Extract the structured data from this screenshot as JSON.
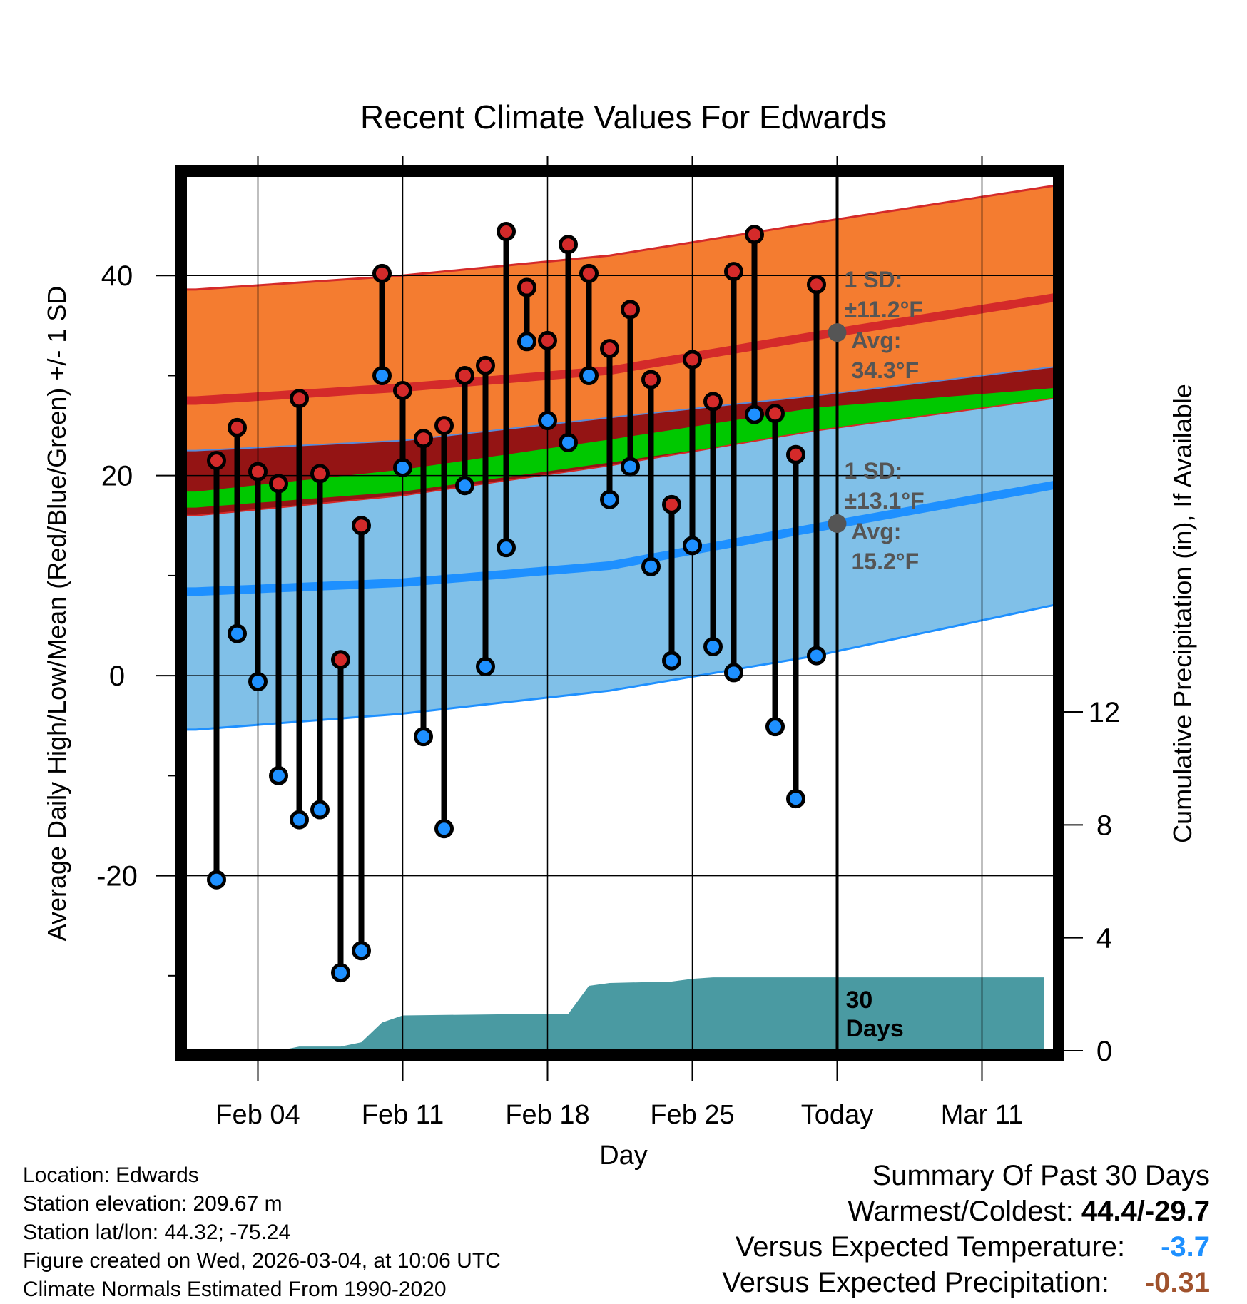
{
  "chart_data": {
    "type": "line",
    "title": "Recent Climate Values For Edwards",
    "xlabel": "Day",
    "ylabel": "Average Daily High/Low/Mean (Red/Blue/Green) +/- 1 SD",
    "y2label": "Cumulative Precipitation (in), If Available",
    "ylim": [
      -37.5,
      50
    ],
    "y2lim": [
      0,
      31
    ],
    "xlim": [
      -0.5,
      41.5
    ],
    "yticks": [
      -20,
      0,
      20,
      40
    ],
    "y2ticks": [
      0,
      4,
      8,
      12
    ],
    "xticks": [
      {
        "day": 3,
        "label": "Feb 04"
      },
      {
        "day": 10,
        "label": "Feb 11"
      },
      {
        "day": 17,
        "label": "Feb 18"
      },
      {
        "day": 24,
        "label": "Feb 25"
      },
      {
        "day": 31,
        "label": "Today"
      },
      {
        "day": 38,
        "label": "Mar 11"
      }
    ],
    "today_day": 31,
    "today_label_line1": "30",
    "today_label_line2": "Days",
    "highs": [
      21.5,
      24.8,
      20.4,
      19.2,
      27.7,
      20.2,
      1.6,
      15.0,
      40.2,
      28.5,
      23.7,
      25.0,
      30.0,
      31.0,
      44.4,
      38.8,
      33.5,
      43.1,
      40.2,
      32.7,
      36.6,
      29.6,
      17.1,
      31.6,
      27.4,
      40.4,
      44.1,
      26.2,
      22.1,
      39.1
    ],
    "lows": [
      -20.4,
      4.2,
      -0.6,
      -10.0,
      -14.4,
      -13.4,
      -29.7,
      -27.5,
      30.0,
      20.8,
      -6.1,
      -15.3,
      19.0,
      0.9,
      12.8,
      33.4,
      25.5,
      23.3,
      30.0,
      17.6,
      20.9,
      10.9,
      1.5,
      13.0,
      2.9,
      0.3,
      26.1,
      -5.1,
      -12.3,
      2.0
    ],
    "normal_days": [
      0,
      10,
      20,
      30,
      40
    ],
    "normal_high_avg": [
      27.5,
      28.8,
      30.5,
      34.0,
      37.3
    ],
    "normal_high_upper": [
      38.6,
      40.0,
      42.0,
      45.3,
      48.5
    ],
    "normal_high_lower": [
      22.5,
      23.5,
      25.8,
      28.0,
      30.5
    ],
    "normal_mean_upper": [
      18.4,
      20.6,
      23.6,
      26.8,
      28.5
    ],
    "normal_mean_lower": [
      16.8,
      18.4,
      21.3,
      24.3,
      27.0
    ],
    "normal_low_upper": [
      16.0,
      18.0,
      21.0,
      24.5,
      27.3
    ],
    "normal_low_avg": [
      8.4,
      9.3,
      11.0,
      14.8,
      18.5
    ],
    "normal_low_lower": [
      -5.4,
      -3.8,
      -1.5,
      2.0,
      6.4
    ],
    "precip_days": [
      0,
      4,
      5,
      7,
      8,
      9,
      10,
      16,
      17,
      18,
      19,
      20,
      23,
      24,
      25,
      41
    ],
    "precip_cumulative": [
      0,
      0,
      0.15,
      0.15,
      0.3,
      1.0,
      1.25,
      1.3,
      1.3,
      1.3,
      2.3,
      2.4,
      2.45,
      2.55,
      2.6,
      2.6
    ],
    "annotations": {
      "high_sd_label": "1 SD:",
      "high_sd_value": "±11.2°F",
      "high_avg_label": "Avg:",
      "high_avg_value": "34.3°F",
      "high_avg_marker": 34.3,
      "low_sd_label": "1 SD:",
      "low_sd_value": "±13.1°F",
      "low_avg_label": "Avg:",
      "low_avg_value": "15.2°F",
      "low_avg_marker": 15.2
    },
    "colors": {
      "high_band": "#f47c30",
      "high_line": "#d42a2a",
      "mean_low_band": "#941414",
      "mean_band": "#00c800",
      "low_band": "#80c0e8",
      "low_line": "#1e90ff",
      "precip": "#4a9aa2",
      "high_dot": "#d42a2a",
      "low_dot": "#1e90ff",
      "annotation": "#555555"
    }
  },
  "info": {
    "location": "Location: Edwards",
    "elevation": "Station elevation: 209.67 m",
    "latlon": "Station lat/lon: 44.32; -75.24",
    "created": "Figure created on Wed, 2026-03-04, at 10:06 UTC",
    "normals": "Climate Normals Estimated From 1990-2020"
  },
  "summary": {
    "title": "Summary Of Past 30 Days",
    "warm_cold_label": "Warmest/Coldest:",
    "warm_cold_value": "44.4/-29.7",
    "temp_label": "Versus Expected Temperature:",
    "temp_value": "-3.7",
    "precip_label": "Versus Expected Precipitation:",
    "precip_value": "-0.31"
  }
}
